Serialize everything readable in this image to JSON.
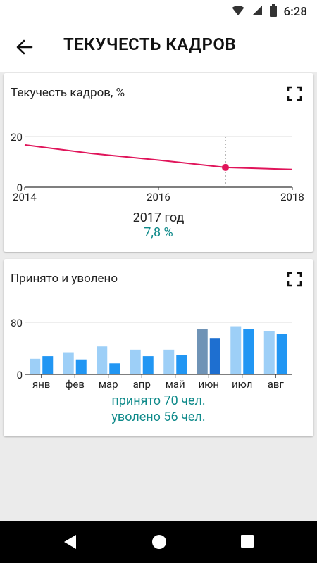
{
  "status_bar": {
    "time": "6:28"
  },
  "app_bar": {
    "title": "ТЕКУЧЕСТЬ КАДРОВ"
  },
  "turnover_card": {
    "title": "Текучесть кадров, %",
    "selected_year": "2017 год",
    "selected_value": "7,8 %"
  },
  "hired_fired_card": {
    "title": "Принято и уволено",
    "hired_text": "принято 70 чел.",
    "fired_text": "уволено 56 чел."
  },
  "colors": {
    "line": "#e0145a",
    "accent_text": "#0f8a8a",
    "hired_bar": "#9dcff7",
    "fired_bar": "#2196f3",
    "hired_bar_selected": "#6f93b6",
    "fired_bar_selected": "#1e6fd0"
  },
  "chart_data": [
    {
      "type": "line",
      "title": "Текучесть кадров, %",
      "x": [
        2014,
        2015,
        2016,
        2017,
        2018
      ],
      "series": [
        {
          "values": [
            16.7,
            13.3,
            10.7,
            7.8,
            7.0
          ]
        }
      ],
      "xticks": [
        "2014",
        "2016",
        "2018"
      ],
      "yticks": [
        "0",
        "20"
      ],
      "xlim": [
        2014,
        2018
      ],
      "ylim": [
        0,
        20
      ],
      "highlight": {
        "x": 2017,
        "y": 7.8
      }
    },
    {
      "type": "bar",
      "title": "Принято и уволено",
      "categories": [
        "янв",
        "фев",
        "мар",
        "апр",
        "май",
        "июн",
        "июл",
        "авг"
      ],
      "series": [
        {
          "values": [
            24,
            34,
            43,
            38,
            38,
            70,
            74,
            66
          ]
        },
        {
          "values": [
            28,
            23,
            17,
            28,
            30,
            56,
            70,
            62
          ]
        }
      ],
      "yticks": [
        "0",
        "80"
      ],
      "ylim": [
        0,
        80
      ],
      "selected_category": "июн"
    }
  ]
}
